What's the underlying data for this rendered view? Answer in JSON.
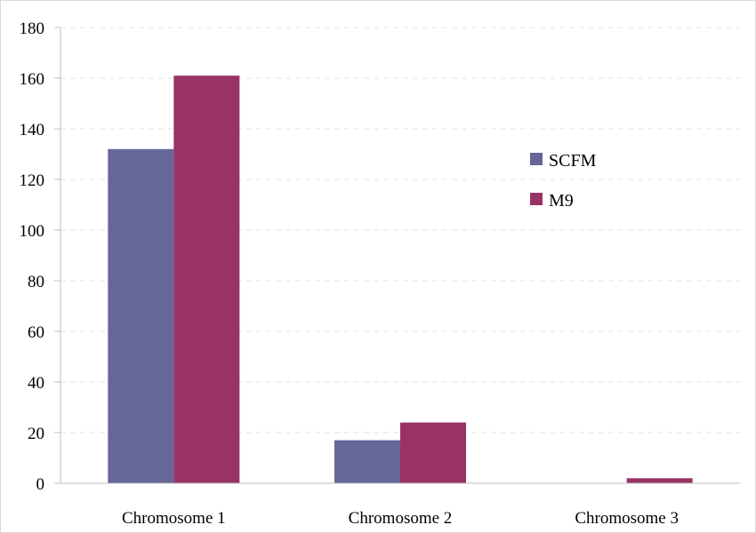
{
  "chart_data": {
    "type": "bar",
    "title": "",
    "xlabel": "",
    "ylabel": "",
    "categories": [
      "Chromosome 1",
      "Chromosome 2",
      "Chromosome 3"
    ],
    "series": [
      {
        "name": "SCFM",
        "color": "#666699",
        "values": [
          132,
          17,
          0
        ]
      },
      {
        "name": "M9",
        "color": "#993366",
        "values": [
          161,
          24,
          2
        ]
      }
    ],
    "ylim": [
      0,
      180
    ],
    "yticks": [
      0,
      20,
      40,
      60,
      80,
      100,
      120,
      140,
      160,
      180
    ],
    "grid": true,
    "legend_position": "right"
  }
}
